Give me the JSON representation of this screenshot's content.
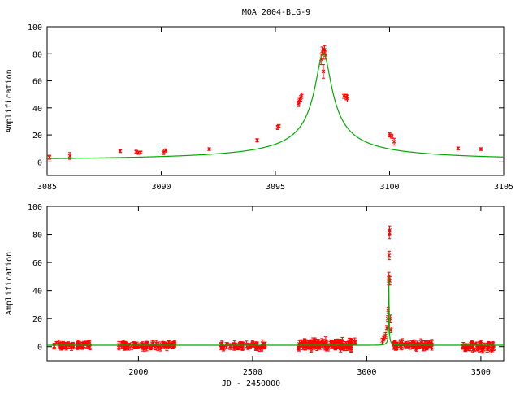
{
  "title": "MOA 2004-BLG-9",
  "colors": {
    "data": "#ff0000",
    "model": "#00aa00",
    "axis": "#000000"
  },
  "chart_data": [
    {
      "type": "scatter",
      "name": "zoom",
      "ylabel": "Amplification",
      "xlabel": "",
      "xlim": [
        3085,
        3105
      ],
      "ylim": [
        -10,
        100
      ],
      "xticks": [
        3085,
        3090,
        3095,
        3100,
        3105
      ],
      "yticks": [
        0,
        20,
        40,
        60,
        80,
        100
      ],
      "model": {
        "t0": 3097.1,
        "u0": 0.0124,
        "tE": 28.0,
        "curve": "point-lens"
      },
      "points": [
        {
          "x": 3085.1,
          "y": 3.5,
          "e": 1.5
        },
        {
          "x": 3086.0,
          "y": 4.5,
          "e": 2.5
        },
        {
          "x": 3088.2,
          "y": 8.0,
          "e": 1.0
        },
        {
          "x": 3088.9,
          "y": 7.5,
          "e": 1.2
        },
        {
          "x": 3089.0,
          "y": 6.8,
          "e": 1.2
        },
        {
          "x": 3089.1,
          "y": 7.0,
          "e": 1.0
        },
        {
          "x": 3090.1,
          "y": 7.5,
          "e": 2.0
        },
        {
          "x": 3090.2,
          "y": 8.5,
          "e": 1.2
        },
        {
          "x": 3092.1,
          "y": 9.5,
          "e": 1.0
        },
        {
          "x": 3094.2,
          "y": 16.0,
          "e": 1.2
        },
        {
          "x": 3095.1,
          "y": 25.5,
          "e": 1.5
        },
        {
          "x": 3095.15,
          "y": 26.5,
          "e": 1.2
        },
        {
          "x": 3096.0,
          "y": 43.0,
          "e": 2.0
        },
        {
          "x": 3096.05,
          "y": 45.0,
          "e": 2.0
        },
        {
          "x": 3096.1,
          "y": 47.0,
          "e": 2.0
        },
        {
          "x": 3096.15,
          "y": 49.0,
          "e": 2.0
        },
        {
          "x": 3097.0,
          "y": 76.0,
          "e": 4.0
        },
        {
          "x": 3097.05,
          "y": 82.0,
          "e": 3.0
        },
        {
          "x": 3097.1,
          "y": 80.0,
          "e": 4.0
        },
        {
          "x": 3097.15,
          "y": 83.0,
          "e": 3.0
        },
        {
          "x": 3097.1,
          "y": 67.0,
          "e": 5.0
        },
        {
          "x": 3097.2,
          "y": 79.0,
          "e": 3.0
        },
        {
          "x": 3098.0,
          "y": 49.0,
          "e": 2.0
        },
        {
          "x": 3098.1,
          "y": 48.0,
          "e": 2.0
        },
        {
          "x": 3098.15,
          "y": 47.0,
          "e": 2.5
        },
        {
          "x": 3100.0,
          "y": 20.0,
          "e": 1.5
        },
        {
          "x": 3100.1,
          "y": 19.0,
          "e": 1.5
        },
        {
          "x": 3100.2,
          "y": 15.0,
          "e": 2.5
        },
        {
          "x": 3103.0,
          "y": 10.0,
          "e": 1.0
        },
        {
          "x": 3104.0,
          "y": 9.5,
          "e": 1.0
        }
      ]
    },
    {
      "type": "scatter",
      "name": "full",
      "ylabel": "Amplification",
      "xlabel": "JD - 2450000",
      "xlim": [
        1600,
        3600
      ],
      "ylim": [
        -10,
        100
      ],
      "xticks": [
        2000,
        2500,
        3000,
        3500
      ],
      "yticks": [
        0,
        20,
        40,
        60,
        80,
        100
      ],
      "model": {
        "t0": 3097.1,
        "u0": 0.0124,
        "tE": 28.0,
        "curve": "point-lens"
      },
      "segments": [
        {
          "x0": 1630,
          "x1": 1760,
          "y": 1.0,
          "n": 40,
          "scatter": 2.0
        },
        {
          "x0": 1760,
          "x1": 1800,
          "y": 1.5,
          "n": 8,
          "scatter": 2.5
        },
        {
          "x0": 1900,
          "x1": 2020,
          "y": 1.0,
          "n": 30,
          "scatter": 1.5
        },
        {
          "x0": 2020,
          "x1": 2160,
          "y": 1.0,
          "n": 45,
          "scatter": 2.0
        },
        {
          "x0": 2360,
          "x1": 2560,
          "y": 0.5,
          "n": 55,
          "scatter": 2.0
        },
        {
          "x0": 2700,
          "x1": 2950,
          "y": 1.5,
          "n": 110,
          "scatter": 3.0
        },
        {
          "x0": 3110,
          "x1": 3290,
          "y": 1.0,
          "n": 60,
          "scatter": 2.5
        },
        {
          "x0": 3420,
          "x1": 3560,
          "y": 0.0,
          "n": 55,
          "scatter": 2.5
        }
      ],
      "points": [
        {
          "x": 3068,
          "y": 4.0,
          "e": 2.0
        },
        {
          "x": 3075,
          "y": 6.0,
          "e": 2.0
        },
        {
          "x": 3082,
          "y": 8.0,
          "e": 2.0
        },
        {
          "x": 3088,
          "y": 13.0,
          "e": 2.0
        },
        {
          "x": 3092,
          "y": 20.0,
          "e": 2.0
        },
        {
          "x": 3094,
          "y": 26.0,
          "e": 2.0
        },
        {
          "x": 3096,
          "y": 47.0,
          "e": 3.0
        },
        {
          "x": 3097,
          "y": 50.0,
          "e": 3.0
        },
        {
          "x": 3098,
          "y": 65.0,
          "e": 3.0
        },
        {
          "x": 3099,
          "y": 80.0,
          "e": 3.0
        },
        {
          "x": 3100,
          "y": 83.0,
          "e": 3.0
        },
        {
          "x": 3101,
          "y": 47.0,
          "e": 3.0
        },
        {
          "x": 3103,
          "y": 20.0,
          "e": 2.5
        },
        {
          "x": 3106,
          "y": 12.0,
          "e": 2.0
        }
      ]
    }
  ]
}
